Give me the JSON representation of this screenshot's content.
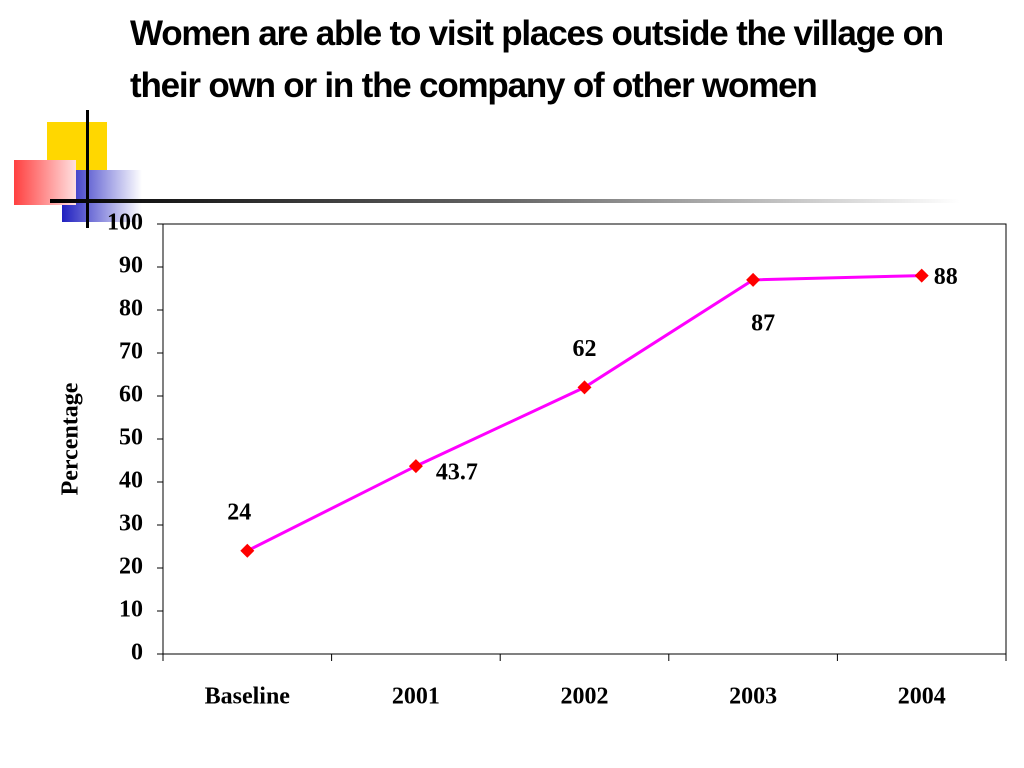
{
  "chart_data": {
    "type": "line",
    "title": "Women are able to visit places outside the village on their own or in the company of other women",
    "y_label": "Percentage",
    "categories": [
      "Baseline",
      "2001",
      "2002",
      "2003",
      "2004"
    ],
    "series": [
      {
        "name": "Percentage",
        "color": "#ff00ff",
        "marker_color": "#ff0000",
        "values": [
          24,
          43.7,
          62,
          87,
          88
        ]
      }
    ],
    "ylim": [
      0,
      100
    ],
    "yticks": [
      0,
      10,
      20,
      30,
      40,
      50,
      60,
      70,
      80,
      90,
      100
    ],
    "grid": false,
    "legend": false
  }
}
